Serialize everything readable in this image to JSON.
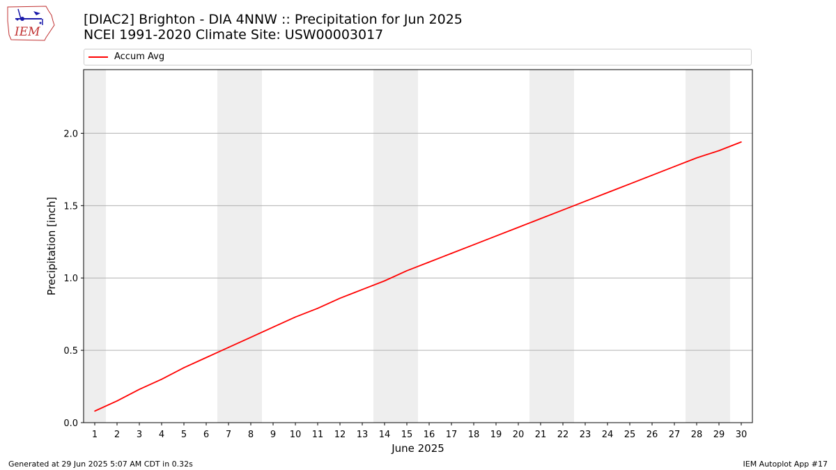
{
  "header": {
    "title_line1": "[DIAC2] Brighton - DIA 4NNW :: Precipitation for Jun 2025",
    "title_line2": "NCEI 1991-2020 Climate Site: USW00003017"
  },
  "logo": {
    "text": "IEM"
  },
  "footer": {
    "left": "Generated at 29 Jun 2025 5:07 AM CDT in 0.32s",
    "right": "IEM Autoplot App #17"
  },
  "colors": {
    "line": "#ff0000",
    "weekend_band": "#eeeeee",
    "grid": "#b0b0b0"
  },
  "chart_data": {
    "type": "line",
    "title": "[DIAC2] Brighton - DIA 4NNW :: Precipitation for Jun 2025",
    "subtitle": "NCEI 1991-2020 Climate Site: USW00003017",
    "xlabel": "June 2025",
    "ylabel": "Precipitation [inch]",
    "xlim": [
      0.5,
      30.5
    ],
    "ylim": [
      0,
      2.44
    ],
    "x_ticks": [
      1,
      2,
      3,
      4,
      5,
      6,
      7,
      8,
      9,
      10,
      11,
      12,
      13,
      14,
      15,
      16,
      17,
      18,
      19,
      20,
      21,
      22,
      23,
      24,
      25,
      26,
      27,
      28,
      29,
      30
    ],
    "y_ticks": [
      "0.0",
      "0.5",
      "1.0",
      "1.5",
      "2.0"
    ],
    "grid": "horizontal",
    "legend_position": "top",
    "weekend_days": [
      1,
      7,
      8,
      14,
      15,
      21,
      22,
      28,
      29
    ],
    "series": [
      {
        "name": "Accum Avg",
        "color": "#ff0000",
        "x": [
          1,
          2,
          3,
          4,
          5,
          6,
          7,
          8,
          9,
          10,
          11,
          12,
          13,
          14,
          15,
          16,
          17,
          18,
          19,
          20,
          21,
          22,
          23,
          24,
          25,
          26,
          27,
          28,
          29,
          30
        ],
        "values": [
          0.08,
          0.15,
          0.23,
          0.3,
          0.38,
          0.45,
          0.52,
          0.59,
          0.66,
          0.73,
          0.79,
          0.86,
          0.92,
          0.98,
          1.05,
          1.11,
          1.17,
          1.23,
          1.29,
          1.35,
          1.41,
          1.47,
          1.53,
          1.59,
          1.65,
          1.71,
          1.77,
          1.83,
          1.88,
          1.94
        ]
      }
    ]
  }
}
